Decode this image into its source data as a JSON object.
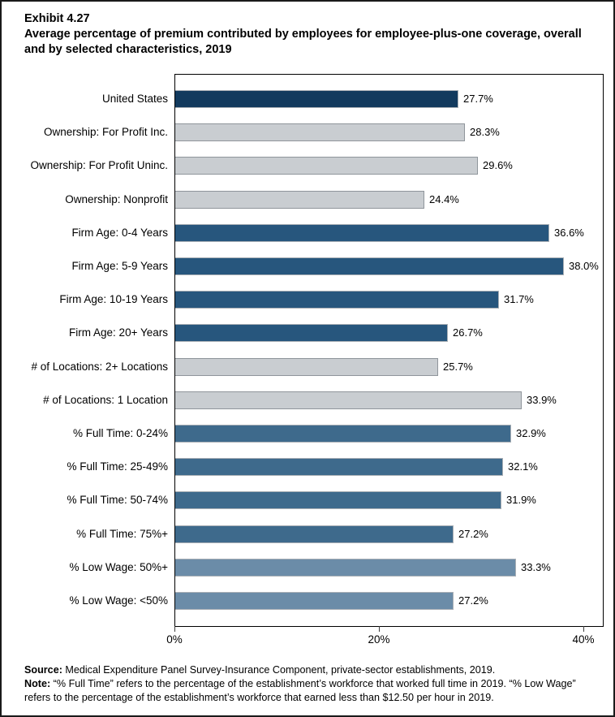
{
  "title": {
    "exhibit": "Exhibit 4.27",
    "text": "Average percentage of premium contributed by employees for employee-plus-one coverage, overall and by selected characteristics, 2019"
  },
  "chart_data": {
    "type": "bar",
    "orientation": "horizontal",
    "title": "Average percentage of premium contributed by employees for employee-plus-one coverage, overall and by selected characteristics, 2019",
    "categories": [
      "United States",
      "Ownership: For Profit Inc.",
      "Ownership: For Profit Uninc.",
      "Ownership: Nonprofit",
      "Firm Age: 0-4 Years",
      "Firm Age: 5-9 Years",
      "Firm Age: 10-19 Years",
      "Firm Age: 20+ Years",
      "# of Locations: 2+ Locations",
      "# of Locations: 1 Location",
      "% Full Time: 0-24%",
      "% Full Time: 25-49%",
      "% Full Time: 50-74%",
      "% Full Time: 75%+",
      "% Low Wage: 50%+",
      "% Low Wage: <50%"
    ],
    "values": [
      27.7,
      28.3,
      29.6,
      24.4,
      36.6,
      38.0,
      31.7,
      26.7,
      25.7,
      33.9,
      32.9,
      32.1,
      31.9,
      27.2,
      33.3,
      27.2
    ],
    "value_labels": [
      "27.7%",
      "28.3%",
      "29.6%",
      "24.4%",
      "36.6%",
      "38.0%",
      "31.7%",
      "26.7%",
      "25.7%",
      "33.9%",
      "32.9%",
      "32.1%",
      "31.9%",
      "27.2%",
      "33.3%",
      "27.2%"
    ],
    "groups": [
      "navy",
      "gray",
      "gray",
      "gray",
      "darkblue",
      "darkblue",
      "darkblue",
      "darkblue",
      "gray",
      "gray",
      "blue",
      "blue",
      "blue",
      "blue",
      "steelblue",
      "steelblue"
    ],
    "palette": {
      "navy": {
        "fill": "#123A5E",
        "border": "#A9AFB5"
      },
      "gray": {
        "fill": "#C9CDD1",
        "border": "#8F959B"
      },
      "darkblue": {
        "fill": "#27567D",
        "border": "#A9AFB5"
      },
      "blue": {
        "fill": "#3E6A8C",
        "border": "#A9AFB5"
      },
      "steelblue": {
        "fill": "#6B8CA8",
        "border": "#A9AFB5"
      }
    },
    "x_ticks": [
      {
        "value": 0,
        "label": "0%"
      },
      {
        "value": 20,
        "label": "20%"
      },
      {
        "value": 40,
        "label": "40%"
      }
    ],
    "xlim": [
      0,
      41.83
    ],
    "xlabel": "",
    "ylabel": "",
    "grid": false,
    "legend": false
  },
  "footer": {
    "source_label": "Source:",
    "source_text": " Medical Expenditure Panel Survey-Insurance Component, private-sector establishments, 2019.",
    "note_label": "Note:",
    "note_text": " “% Full Time” refers to the percentage of the establishment’s workforce that worked full time in 2019. “% Low Wage” refers to the percentage of the establishment’s workforce that earned less than $12.50 per hour in 2019."
  }
}
